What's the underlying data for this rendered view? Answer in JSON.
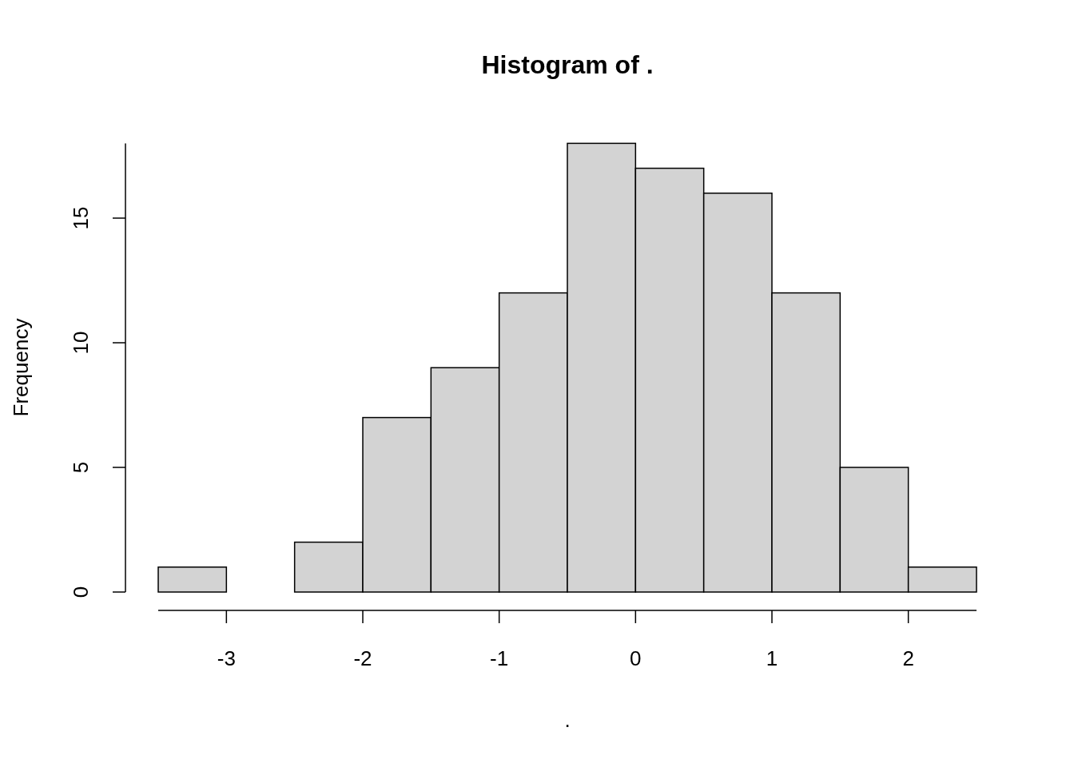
{
  "chart_data": {
    "type": "histogram",
    "title": "Histogram of .",
    "xlabel": ".",
    "ylabel": "Frequency",
    "bins": [
      -3.5,
      -3,
      -2.5,
      -2,
      -1.5,
      -1,
      -0.5,
      0,
      0.5,
      1,
      1.5,
      2,
      2.5
    ],
    "values": [
      1,
      0,
      2,
      7,
      9,
      12,
      18,
      17,
      16,
      12,
      5,
      1
    ],
    "color": "#d3d3d3",
    "xlim": [
      -3.5,
      2.5
    ],
    "xticks": [
      -3,
      -2,
      -1,
      0,
      1,
      2
    ],
    "ylim": [
      0,
      18
    ],
    "yticks": [
      0,
      5,
      10,
      15
    ],
    "grid": false
  }
}
